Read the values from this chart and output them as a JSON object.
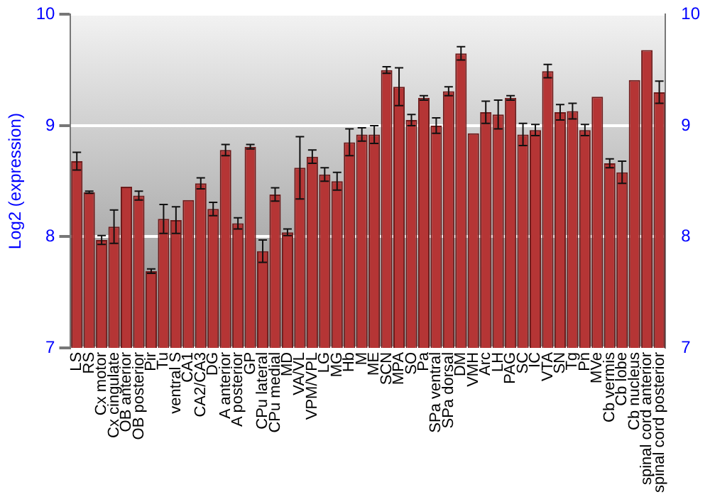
{
  "chart_data": {
    "type": "bar",
    "ylabel": "Log2 (expression)",
    "categories": [
      "LS",
      "RS",
      "Cx motor",
      "Cx cingulate",
      "OB anterior",
      "OB posterior",
      "Pir",
      "Tu",
      "ventral S",
      "CA1",
      "CA2/CA3",
      "DG",
      "A anterior",
      "A posterior",
      "GP",
      "CPu lateral",
      "CPu medial",
      "MD",
      "VA/VL",
      "VPM/VPL",
      "LG",
      "MG",
      "Hb",
      "M",
      "ME",
      "SCN",
      "MPA",
      "SO",
      "Pa",
      "SPa ventral",
      "SPa dorsal",
      "DM",
      "VMH",
      "Arc",
      "LH",
      "PAG",
      "SC",
      "IC",
      "VTA",
      "SN",
      "Tg",
      "Pn",
      "MVe",
      "Cb vermis",
      "Cb lobe",
      "Cb nucleus",
      "spinal cord anterior",
      "spinal cord posterior"
    ],
    "values": [
      8.68,
      8.4,
      7.97,
      8.09,
      8.45,
      8.37,
      7.69,
      8.16,
      8.15,
      8.33,
      8.48,
      8.25,
      8.78,
      8.12,
      8.81,
      7.87,
      8.38,
      8.04,
      8.62,
      8.72,
      8.56,
      8.5,
      8.85,
      8.92,
      8.92,
      9.5,
      9.35,
      9.05,
      9.25,
      9.0,
      9.31,
      9.65,
      8.93,
      9.12,
      9.1,
      9.25,
      8.92,
      8.96,
      9.49,
      9.12,
      9.13,
      8.96,
      9.26,
      8.66,
      8.58,
      9.41,
      9.68,
      9.3
    ],
    "errors": [
      0.08,
      0.01,
      0.04,
      0.15,
      null,
      0.04,
      0.02,
      0.13,
      0.12,
      null,
      0.05,
      0.06,
      0.05,
      0.05,
      0.02,
      0.1,
      0.06,
      0.03,
      0.28,
      0.06,
      0.06,
      0.08,
      0.12,
      0.06,
      0.08,
      0.03,
      0.17,
      0.05,
      0.02,
      0.07,
      0.04,
      0.06,
      null,
      0.1,
      0.13,
      0.02,
      0.1,
      0.05,
      0.06,
      0.07,
      0.07,
      0.05,
      null,
      0.04,
      0.1,
      null,
      null,
      0.1
    ],
    "color": "#b53535",
    "ylim": [
      7,
      10
    ],
    "yticks": [
      7,
      8,
      9,
      10
    ],
    "y2lim": [
      7,
      10
    ],
    "y2ticks": [
      7,
      8,
      9,
      10
    ],
    "grid": "y"
  }
}
